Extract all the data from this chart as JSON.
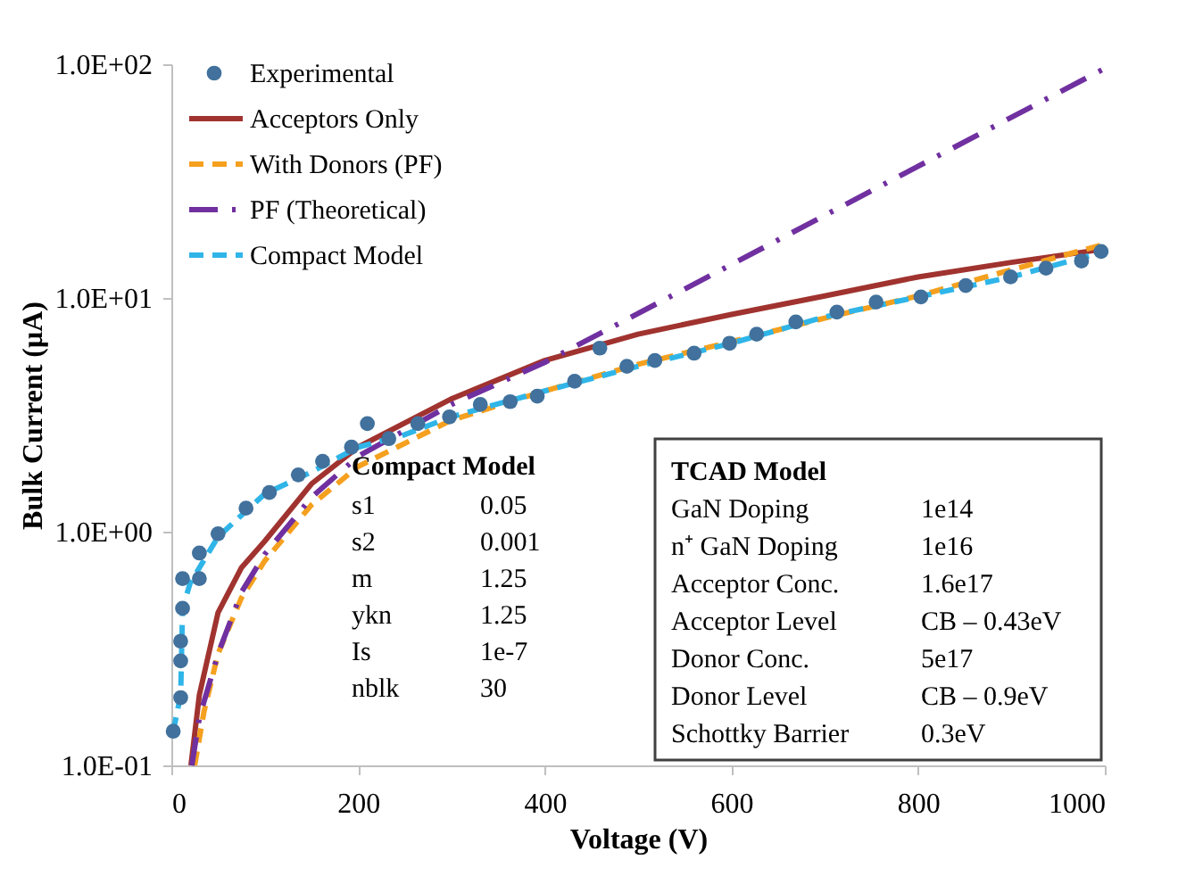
{
  "chart_data": {
    "type": "line",
    "xlabel": "Voltage (V)",
    "ylabel": "Bulk Current (μA)",
    "xlim": [
      0,
      1000
    ],
    "xticks": [
      0,
      200,
      400,
      600,
      800,
      1000
    ],
    "ylim": [
      0.1,
      100
    ],
    "yticks": [
      {
        "value": 0.1,
        "label": "1.0E-01"
      },
      {
        "value": 1,
        "label": "1.0E+00"
      },
      {
        "value": 10,
        "label": "1.0E+01"
      },
      {
        "value": 100,
        "label": "1.0E+02"
      }
    ],
    "log": "y",
    "grid": false,
    "legend": "top left",
    "series": [
      {
        "name": "Experimental",
        "type": "scatter",
        "marker": "circle",
        "color": "#41719c",
        "x": [
          2,
          10,
          10,
          10,
          12,
          12,
          30,
          30,
          50,
          80,
          105,
          136,
          162,
          193,
          210,
          233,
          264,
          298,
          331,
          363,
          392,
          432,
          459,
          488,
          518,
          560,
          598,
          627,
          669,
          713,
          755,
          803,
          851,
          899,
          937,
          975,
          996
        ],
        "values": [
          0.14,
          0.195,
          0.28,
          0.34,
          0.47,
          0.63,
          0.63,
          0.81,
          0.98,
          1.26,
          1.47,
          1.75,
          2.0,
          2.3,
          2.9,
          2.5,
          2.9,
          3.1,
          3.5,
          3.6,
          3.8,
          4.4,
          6.1,
          5.1,
          5.4,
          5.8,
          6.4,
          7.0,
          7.9,
          8.7,
          9.6,
          10.1,
          11.3,
          12.3,
          13.4,
          14.4,
          15.8
        ]
      },
      {
        "name": "Acceptors Only",
        "line_style": "solid",
        "color": "#a0332f",
        "x": [
          21,
          30,
          50,
          75,
          100,
          150,
          200,
          300,
          400,
          500,
          600,
          700,
          800,
          900,
          1000
        ],
        "values": [
          0.1,
          0.2,
          0.45,
          0.7,
          0.91,
          1.6,
          2.3,
          3.7,
          5.4,
          7.0,
          8.5,
          10.2,
          12.3,
          14.2,
          16.2
        ]
      },
      {
        "name": "With Donors (PF)",
        "line_style": "dashed",
        "color": "#f5a01e",
        "x": [
          25,
          35,
          50,
          75,
          100,
          150,
          200,
          300,
          400,
          500,
          600,
          700,
          800,
          900,
          1000
        ],
        "values": [
          0.1,
          0.17,
          0.3,
          0.52,
          0.75,
          1.3,
          1.9,
          3.0,
          4.0,
          5.2,
          6.5,
          8.2,
          10.2,
          13.2,
          17
        ]
      },
      {
        "name": "PF (Theoretical)",
        "line_style": "dashdot",
        "color": "#7030a0",
        "x": [
          22,
          30,
          50,
          75,
          100,
          150,
          200,
          300,
          400,
          600,
          800,
          1000
        ],
        "values": [
          0.1,
          0.16,
          0.3,
          0.55,
          0.8,
          1.4,
          2.1,
          3.5,
          5.3,
          13.9,
          36.6,
          96
        ]
      },
      {
        "name": "Compact Model",
        "line_style": "dashed",
        "color": "#2fb5e8",
        "x": [
          2,
          10,
          12,
          20,
          30,
          50,
          100,
          150,
          200,
          250,
          300,
          400,
          500,
          600,
          700,
          800,
          900,
          1000
        ],
        "values": [
          0.14,
          0.2,
          0.47,
          0.6,
          0.7,
          0.95,
          1.45,
          1.8,
          2.3,
          2.6,
          3.1,
          4.0,
          5.1,
          6.4,
          8.3,
          10.1,
          12.3,
          15.8
        ]
      }
    ],
    "annotations": [
      "Compact Model",
      "s1",
      "0.05",
      "s2",
      "0.001",
      "m",
      "1.25",
      "ykn",
      "1.25",
      "Is",
      "1e-7",
      "nblk",
      "30",
      "TCAD Model",
      "GaN Doping",
      "1e14",
      "n⁺ GaN Doping",
      "1e16",
      "Acceptor Conc.",
      "1.6e17",
      "Acceptor Level",
      "CB – 0.43eV",
      "Donor Conc.",
      "5e17",
      "Donor Level",
      "CB – 0.9eV",
      "Schottky Barrier",
      "0.3eV"
    ]
  }
}
